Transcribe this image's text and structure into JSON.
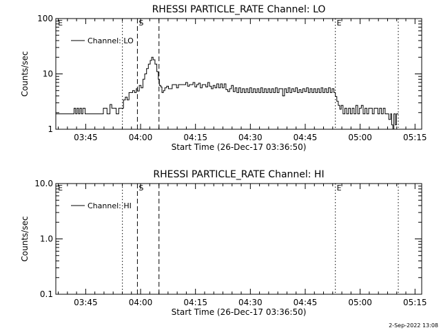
{
  "footer": {
    "timestamp": "2-Sep-2022 13:08"
  },
  "chart_data": [
    {
      "type": "line",
      "title": "RHESSI PARTICLE_RATE Channel: LO",
      "xlabel": "Start Time (26-Dec-17 03:36:50)",
      "ylabel": "Counts/sec",
      "x_unit": "minutes since 03:36:50",
      "xlim": [
        0,
        100
      ],
      "yscale": "log",
      "ylim": [
        1,
        100
      ],
      "x_ticks": [
        {
          "x": 8.17,
          "label": "03:45"
        },
        {
          "x": 23.17,
          "label": "04:00"
        },
        {
          "x": 38.17,
          "label": "04:15"
        },
        {
          "x": 53.17,
          "label": "04:30"
        },
        {
          "x": 68.17,
          "label": "04:45"
        },
        {
          "x": 83.17,
          "label": "05:00"
        },
        {
          "x": 98.17,
          "label": "05:15"
        }
      ],
      "y_ticks": [
        {
          "y": 1,
          "label": "1"
        },
        {
          "y": 10,
          "label": "10"
        },
        {
          "y": 100,
          "label": "100"
        }
      ],
      "legend": {
        "entries": [
          "Channel: LO"
        ],
        "position": "top-left"
      },
      "markers": [
        {
          "x": 18.2,
          "style": "dotted",
          "label": ""
        },
        {
          "x": 22.3,
          "style": "dashed",
          "label": "S"
        },
        {
          "x": 28.2,
          "style": "dashed",
          "label": ""
        },
        {
          "x": 76.4,
          "style": "dotted",
          "label": "E"
        },
        {
          "x": 93.6,
          "style": "dotted",
          "label": ""
        }
      ],
      "edge_labels": [
        {
          "x": 0.4,
          "label": "E"
        }
      ],
      "series": [
        {
          "name": "Channel: LO",
          "points": [
            [
              0,
              1.9
            ],
            [
              4.5,
              1.9
            ],
            [
              5,
              2.4
            ],
            [
              5.4,
              1.9
            ],
            [
              5.8,
              2.4
            ],
            [
              6.2,
              1.9
            ],
            [
              6.6,
              2.4
            ],
            [
              7,
              1.9
            ],
            [
              7.4,
              2.4
            ],
            [
              8,
              1.9
            ],
            [
              12,
              1.9
            ],
            [
              13,
              2.4
            ],
            [
              14,
              1.9
            ],
            [
              14.8,
              2.8
            ],
            [
              15.3,
              2.4
            ],
            [
              16,
              2.4
            ],
            [
              16.5,
              1.9
            ],
            [
              17.2,
              2.4
            ],
            [
              18.2,
              2.4
            ],
            [
              18.5,
              3.4
            ],
            [
              19,
              3.8
            ],
            [
              19.5,
              3.4
            ],
            [
              20,
              4.6
            ],
            [
              20.5,
              4.6
            ],
            [
              21,
              5
            ],
            [
              21.5,
              4.6
            ],
            [
              22,
              5.4
            ],
            [
              22.3,
              4.9
            ],
            [
              22.8,
              6.2
            ],
            [
              23.3,
              5.6
            ],
            [
              23.8,
              8
            ],
            [
              24.3,
              10
            ],
            [
              24.8,
              12.5
            ],
            [
              25.3,
              15
            ],
            [
              25.8,
              17.5
            ],
            [
              26.2,
              20
            ],
            [
              26.6,
              18
            ],
            [
              27.1,
              15
            ],
            [
              27.6,
              11
            ],
            [
              28,
              8
            ],
            [
              28.3,
              6.2
            ],
            [
              28.7,
              5.8
            ],
            [
              29,
              4.6
            ],
            [
              29.4,
              5
            ],
            [
              29.8,
              5.6
            ],
            [
              30.3,
              6
            ],
            [
              30.8,
              5.4
            ],
            [
              31.3,
              5.4
            ],
            [
              31.8,
              6.4
            ],
            [
              32.5,
              6.4
            ],
            [
              33,
              5.6
            ],
            [
              33.5,
              6.4
            ],
            [
              34,
              6.4
            ],
            [
              35,
              6.4
            ],
            [
              35.5,
              7
            ],
            [
              36,
              6
            ],
            [
              36.5,
              6.4
            ],
            [
              37,
              6.4
            ],
            [
              37.5,
              7
            ],
            [
              38,
              5.8
            ],
            [
              38.5,
              6.4
            ],
            [
              39,
              6.8
            ],
            [
              39.5,
              5.6
            ],
            [
              40,
              6.4
            ],
            [
              40.5,
              6.4
            ],
            [
              41,
              5.8
            ],
            [
              41.5,
              7
            ],
            [
              42,
              6
            ],
            [
              42.5,
              5.4
            ],
            [
              43,
              6.2
            ],
            [
              43.5,
              5.6
            ],
            [
              44,
              6.6
            ],
            [
              44.5,
              5.6
            ],
            [
              45,
              6.6
            ],
            [
              45.5,
              5.6
            ],
            [
              46,
              6.6
            ],
            [
              46.5,
              5.2
            ],
            [
              47,
              4.8
            ],
            [
              47.5,
              5.4
            ],
            [
              48,
              6.2
            ],
            [
              48.5,
              4.8
            ],
            [
              49,
              5.6
            ],
            [
              49.5,
              4.6
            ],
            [
              50,
              5.6
            ],
            [
              50.5,
              4.6
            ],
            [
              51,
              5.4
            ],
            [
              51.5,
              4.6
            ],
            [
              52,
              5.4
            ],
            [
              52.5,
              4.6
            ],
            [
              53,
              5.6
            ],
            [
              53.5,
              4.6
            ],
            [
              54,
              5.4
            ],
            [
              54.5,
              4.6
            ],
            [
              55,
              5.4
            ],
            [
              55.5,
              4.6
            ],
            [
              56,
              5.6
            ],
            [
              56.5,
              4.6
            ],
            [
              57,
              5.4
            ],
            [
              57.5,
              4.6
            ],
            [
              58,
              5.4
            ],
            [
              58.5,
              4.6
            ],
            [
              59,
              5.4
            ],
            [
              59.5,
              4.6
            ],
            [
              60,
              5.6
            ],
            [
              60.5,
              4.6
            ],
            [
              61,
              5.4
            ],
            [
              61.5,
              5.4
            ],
            [
              62,
              4
            ],
            [
              62.5,
              5.4
            ],
            [
              63,
              4.6
            ],
            [
              63.5,
              5.6
            ],
            [
              64,
              4.6
            ],
            [
              64.5,
              5.4
            ],
            [
              65,
              4.8
            ],
            [
              65.5,
              5.6
            ],
            [
              66,
              4.6
            ],
            [
              66.5,
              5.2
            ],
            [
              67,
              4.6
            ],
            [
              67.5,
              5.4
            ],
            [
              68,
              4.8
            ],
            [
              68.5,
              5.6
            ],
            [
              69,
              4.6
            ],
            [
              69.5,
              5.4
            ],
            [
              70,
              4.6
            ],
            [
              70.5,
              5.4
            ],
            [
              71,
              4.6
            ],
            [
              71.5,
              5.4
            ],
            [
              72,
              4.6
            ],
            [
              72.5,
              5.6
            ],
            [
              73,
              4.6
            ],
            [
              73.5,
              5.4
            ],
            [
              74,
              4.6
            ],
            [
              74.5,
              5.6
            ],
            [
              75,
              4.6
            ],
            [
              75.5,
              5.4
            ],
            [
              76,
              4.6
            ],
            [
              76.4,
              3.9
            ],
            [
              76.8,
              3.2
            ],
            [
              77.2,
              2.7
            ],
            [
              77.6,
              2.3
            ],
            [
              78,
              2.7
            ],
            [
              78.5,
              1.9
            ],
            [
              79,
              2.4
            ],
            [
              79.5,
              1.9
            ],
            [
              80,
              2.4
            ],
            [
              80.5,
              1.9
            ],
            [
              81,
              2.4
            ],
            [
              81.5,
              1.9
            ],
            [
              82,
              2.7
            ],
            [
              82.5,
              1.9
            ],
            [
              83,
              2.4
            ],
            [
              83.5,
              2.7
            ],
            [
              84,
              1.9
            ],
            [
              84.5,
              2.4
            ],
            [
              85,
              1.9
            ],
            [
              85.5,
              2.4
            ],
            [
              86,
              2.4
            ],
            [
              86.5,
              1.9
            ],
            [
              87,
              2.4
            ],
            [
              87.5,
              2.4
            ],
            [
              88,
              1.9
            ],
            [
              88.5,
              2.4
            ],
            [
              89,
              1.9
            ],
            [
              89.5,
              2.4
            ],
            [
              90,
              1.9
            ],
            [
              90.5,
              1.9
            ],
            [
              91,
              1.5
            ],
            [
              91.5,
              1.9
            ],
            [
              91.8,
              1.2
            ],
            [
              92.1,
              1
            ],
            [
              92.4,
              1.9
            ],
            [
              92.8,
              1.2
            ],
            [
              93.1,
              1.9
            ],
            [
              93.6,
              1.9
            ]
          ]
        }
      ]
    },
    {
      "type": "line",
      "title": "RHESSI PARTICLE_RATE Channel: HI",
      "xlabel": "Start Time (26-Dec-17 03:36:50)",
      "ylabel": "Counts/sec",
      "x_unit": "minutes since 03:36:50",
      "xlim": [
        0,
        100
      ],
      "yscale": "log",
      "ylim": [
        0.1,
        10
      ],
      "x_ticks": [
        {
          "x": 8.17,
          "label": "03:45"
        },
        {
          "x": 23.17,
          "label": "04:00"
        },
        {
          "x": 38.17,
          "label": "04:15"
        },
        {
          "x": 53.17,
          "label": "04:30"
        },
        {
          "x": 68.17,
          "label": "04:45"
        },
        {
          "x": 83.17,
          "label": "05:00"
        },
        {
          "x": 98.17,
          "label": "05:15"
        }
      ],
      "y_ticks": [
        {
          "y": 0.1,
          "label": "0.1"
        },
        {
          "y": 1,
          "label": "1.0"
        },
        {
          "y": 10,
          "label": "10.0"
        }
      ],
      "legend": {
        "entries": [
          "Channel: HI"
        ],
        "position": "top-left"
      },
      "markers": [
        {
          "x": 18.2,
          "style": "dotted",
          "label": ""
        },
        {
          "x": 22.3,
          "style": "dashed",
          "label": "S"
        },
        {
          "x": 28.2,
          "style": "dashed",
          "label": ""
        },
        {
          "x": 76.4,
          "style": "dotted",
          "label": "E"
        },
        {
          "x": 93.6,
          "style": "dotted",
          "label": ""
        }
      ],
      "edge_labels": [
        {
          "x": 0.4,
          "label": "E"
        }
      ],
      "series": [
        {
          "name": "Channel: HI",
          "points": []
        }
      ]
    }
  ]
}
